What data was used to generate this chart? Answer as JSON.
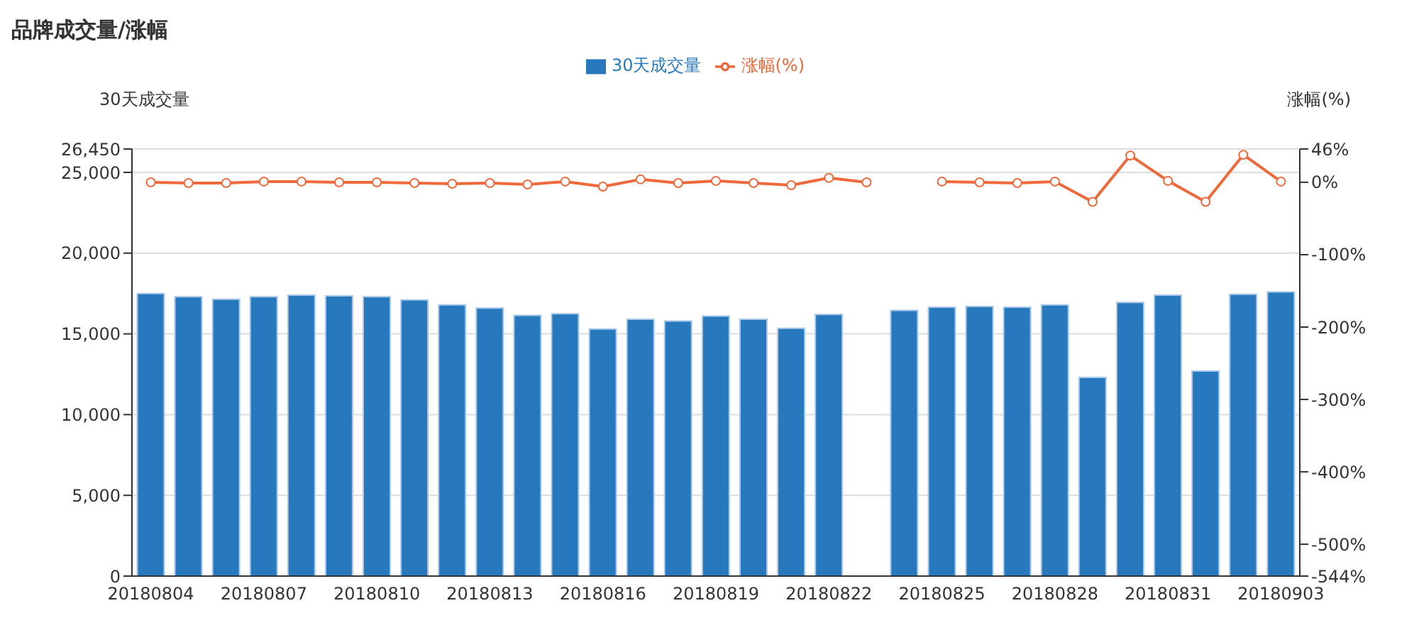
{
  "chart_data": {
    "type": "bar",
    "title": "品牌成交量/涨幅",
    "ylabel": "30天成交量",
    "y2label": "涨幅(%)",
    "categories": [
      "20180804",
      null,
      null,
      "20180807",
      null,
      null,
      "20180810",
      null,
      null,
      "20180813",
      null,
      null,
      "20180816",
      null,
      null,
      "20180819",
      null,
      null,
      "20180822",
      null,
      null,
      "20180825",
      null,
      null,
      "20180828",
      null,
      null,
      "20180831",
      null,
      null,
      "20180903"
    ],
    "series": [
      {
        "name": "30天成交量",
        "color": "#2878be",
        "values": [
          17500,
          17300,
          17150,
          17300,
          17400,
          17350,
          17300,
          17100,
          16800,
          16600,
          16150,
          16250,
          15300,
          15900,
          15800,
          16100,
          15900,
          15350,
          16200,
          null,
          16450,
          16650,
          16700,
          16650,
          16800,
          12300,
          16950,
          17400,
          12700,
          17450,
          17600
        ]
      },
      {
        "name": "涨幅(%)",
        "type": "line",
        "axis": "y2",
        "color": "#ee6a3c",
        "marker": "circle",
        "line_style": "solid",
        "values": [
          0,
          -1,
          -1,
          1,
          1,
          0,
          0,
          -1,
          -2,
          -1,
          -3,
          1,
          -6,
          4,
          -1,
          2,
          -1,
          -4,
          6,
          0,
          null,
          1,
          0,
          -1,
          1,
          -27,
          37,
          2,
          -27,
          38,
          1
        ]
      }
    ],
    "ylim": [
      0,
      26450
    ],
    "yticks": [
      0,
      {
        "value": 5000,
        "label": "5,000"
      },
      {
        "value": 10000,
        "label": "10,000"
      },
      {
        "value": 15000,
        "label": "15,000"
      },
      {
        "value": 20000,
        "label": "20,000"
      },
      {
        "value": 25000,
        "label": "25,000"
      },
      {
        "value": 26450,
        "label": "26,450"
      }
    ],
    "y2lim": [
      -544,
      46
    ],
    "y2ticks": [
      {
        "value": -544,
        "label": "-544%"
      },
      {
        "value": -500,
        "label": "-500%"
      },
      {
        "value": -400,
        "label": "-400%"
      },
      {
        "value": -300,
        "label": "-300%"
      },
      {
        "value": -200,
        "label": "-200%"
      },
      {
        "value": -100,
        "label": "-100%"
      },
      {
        "value": 0,
        "label": "0%"
      },
      {
        "value": 46,
        "label": "46%"
      }
    ],
    "grid": "y",
    "legend": "top"
  }
}
